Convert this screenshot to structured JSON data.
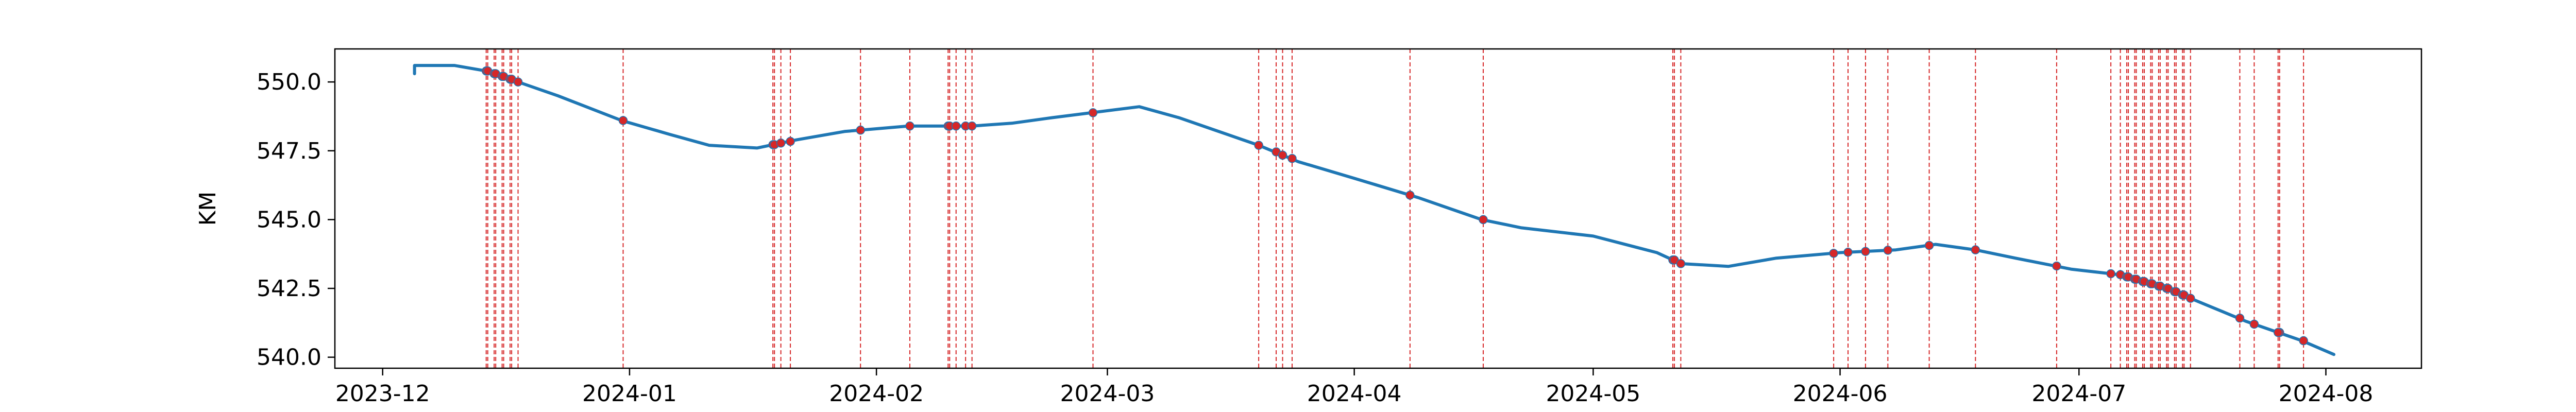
{
  "chart_data": {
    "type": "line",
    "title": "",
    "xlabel": "",
    "ylabel": "KM",
    "xlim": [
      "2023-11-25",
      "2024-08-13"
    ],
    "ylim": [
      539.6,
      551.2
    ],
    "grid": false,
    "legend": "none",
    "x_ticks": [
      "2023-12",
      "2024-01",
      "2024-02",
      "2024-03",
      "2024-04",
      "2024-05",
      "2024-06",
      "2024-07",
      "2024-08"
    ],
    "y_ticks": [
      540.0,
      542.5,
      545.0,
      547.5,
      550.0
    ],
    "y_tick_labels": [
      "540.0",
      "542.5",
      "545.0",
      "547.5",
      "550.0"
    ],
    "colors": {
      "line": "#1f77b4",
      "event_line": "#d62728",
      "marker": "#d62728",
      "axes": "#000000"
    },
    "series": [
      {
        "x": [
          "2023-12-05",
          "2023-12-05",
          "2023-12-06",
          "2023-12-10",
          "2023-12-14",
          "2023-12-18",
          "2023-12-23",
          "2023-12-31",
          "2024-01-06",
          "2024-01-11",
          "2024-01-17",
          "2024-01-22",
          "2024-01-28",
          "2024-02-05",
          "2024-02-13",
          "2024-02-18",
          "2024-02-23",
          "2024-03-05",
          "2024-03-10",
          "2024-03-16",
          "2024-03-20",
          "2024-03-25",
          "2024-04-01",
          "2024-04-09",
          "2024-04-17",
          "2024-04-22",
          "2024-05-01",
          "2024-05-09",
          "2024-05-12",
          "2024-05-18",
          "2024-05-24",
          "2024-06-01",
          "2024-06-08",
          "2024-06-13",
          "2024-06-18",
          "2024-06-23",
          "2024-06-30",
          "2024-07-06",
          "2024-07-12",
          "2024-07-17",
          "2024-07-22",
          "2024-07-29",
          "2024-08-02"
        ],
        "y": [
          550.3,
          550.6,
          550.6,
          550.6,
          550.4,
          550.0,
          549.5,
          548.6,
          548.1,
          547.7,
          547.6,
          547.9,
          548.2,
          548.4,
          548.4,
          548.5,
          548.7,
          549.1,
          548.7,
          548.1,
          547.7,
          547.1,
          546.5,
          545.8,
          545.0,
          544.7,
          544.4,
          543.8,
          543.4,
          543.3,
          543.6,
          543.8,
          543.9,
          544.1,
          543.9,
          543.6,
          543.2,
          543.0,
          542.5,
          541.9,
          541.3,
          540.6,
          540.1
        ]
      }
    ],
    "event_dates": [
      "2023-12-14",
      "2023-12-14",
      "2023-12-15",
      "2023-12-15",
      "2023-12-16",
      "2023-12-16",
      "2023-12-17",
      "2023-12-17",
      "2023-12-18",
      "2023-12-31",
      "2024-01-19",
      "2024-01-19",
      "2024-01-20",
      "2024-01-21",
      "2024-01-30",
      "2024-02-05",
      "2024-02-10",
      "2024-02-10",
      "2024-02-11",
      "2024-02-12",
      "2024-02-13",
      "2024-02-28",
      "2024-03-20",
      "2024-03-22",
      "2024-03-23",
      "2024-03-24",
      "2024-04-08",
      "2024-04-17",
      "2024-05-11",
      "2024-05-11",
      "2024-05-12",
      "2024-05-31",
      "2024-06-02",
      "2024-06-04",
      "2024-06-07",
      "2024-06-12",
      "2024-06-18",
      "2024-06-28",
      "2024-07-05",
      "2024-07-06",
      "2024-07-07",
      "2024-07-07",
      "2024-07-08",
      "2024-07-08",
      "2024-07-09",
      "2024-07-09",
      "2024-07-10",
      "2024-07-10",
      "2024-07-11",
      "2024-07-11",
      "2024-07-12",
      "2024-07-12",
      "2024-07-13",
      "2024-07-13",
      "2024-07-14",
      "2024-07-14",
      "2024-07-15",
      "2024-07-21",
      "2024-07-23",
      "2024-07-26",
      "2024-07-26",
      "2024-07-29"
    ]
  }
}
